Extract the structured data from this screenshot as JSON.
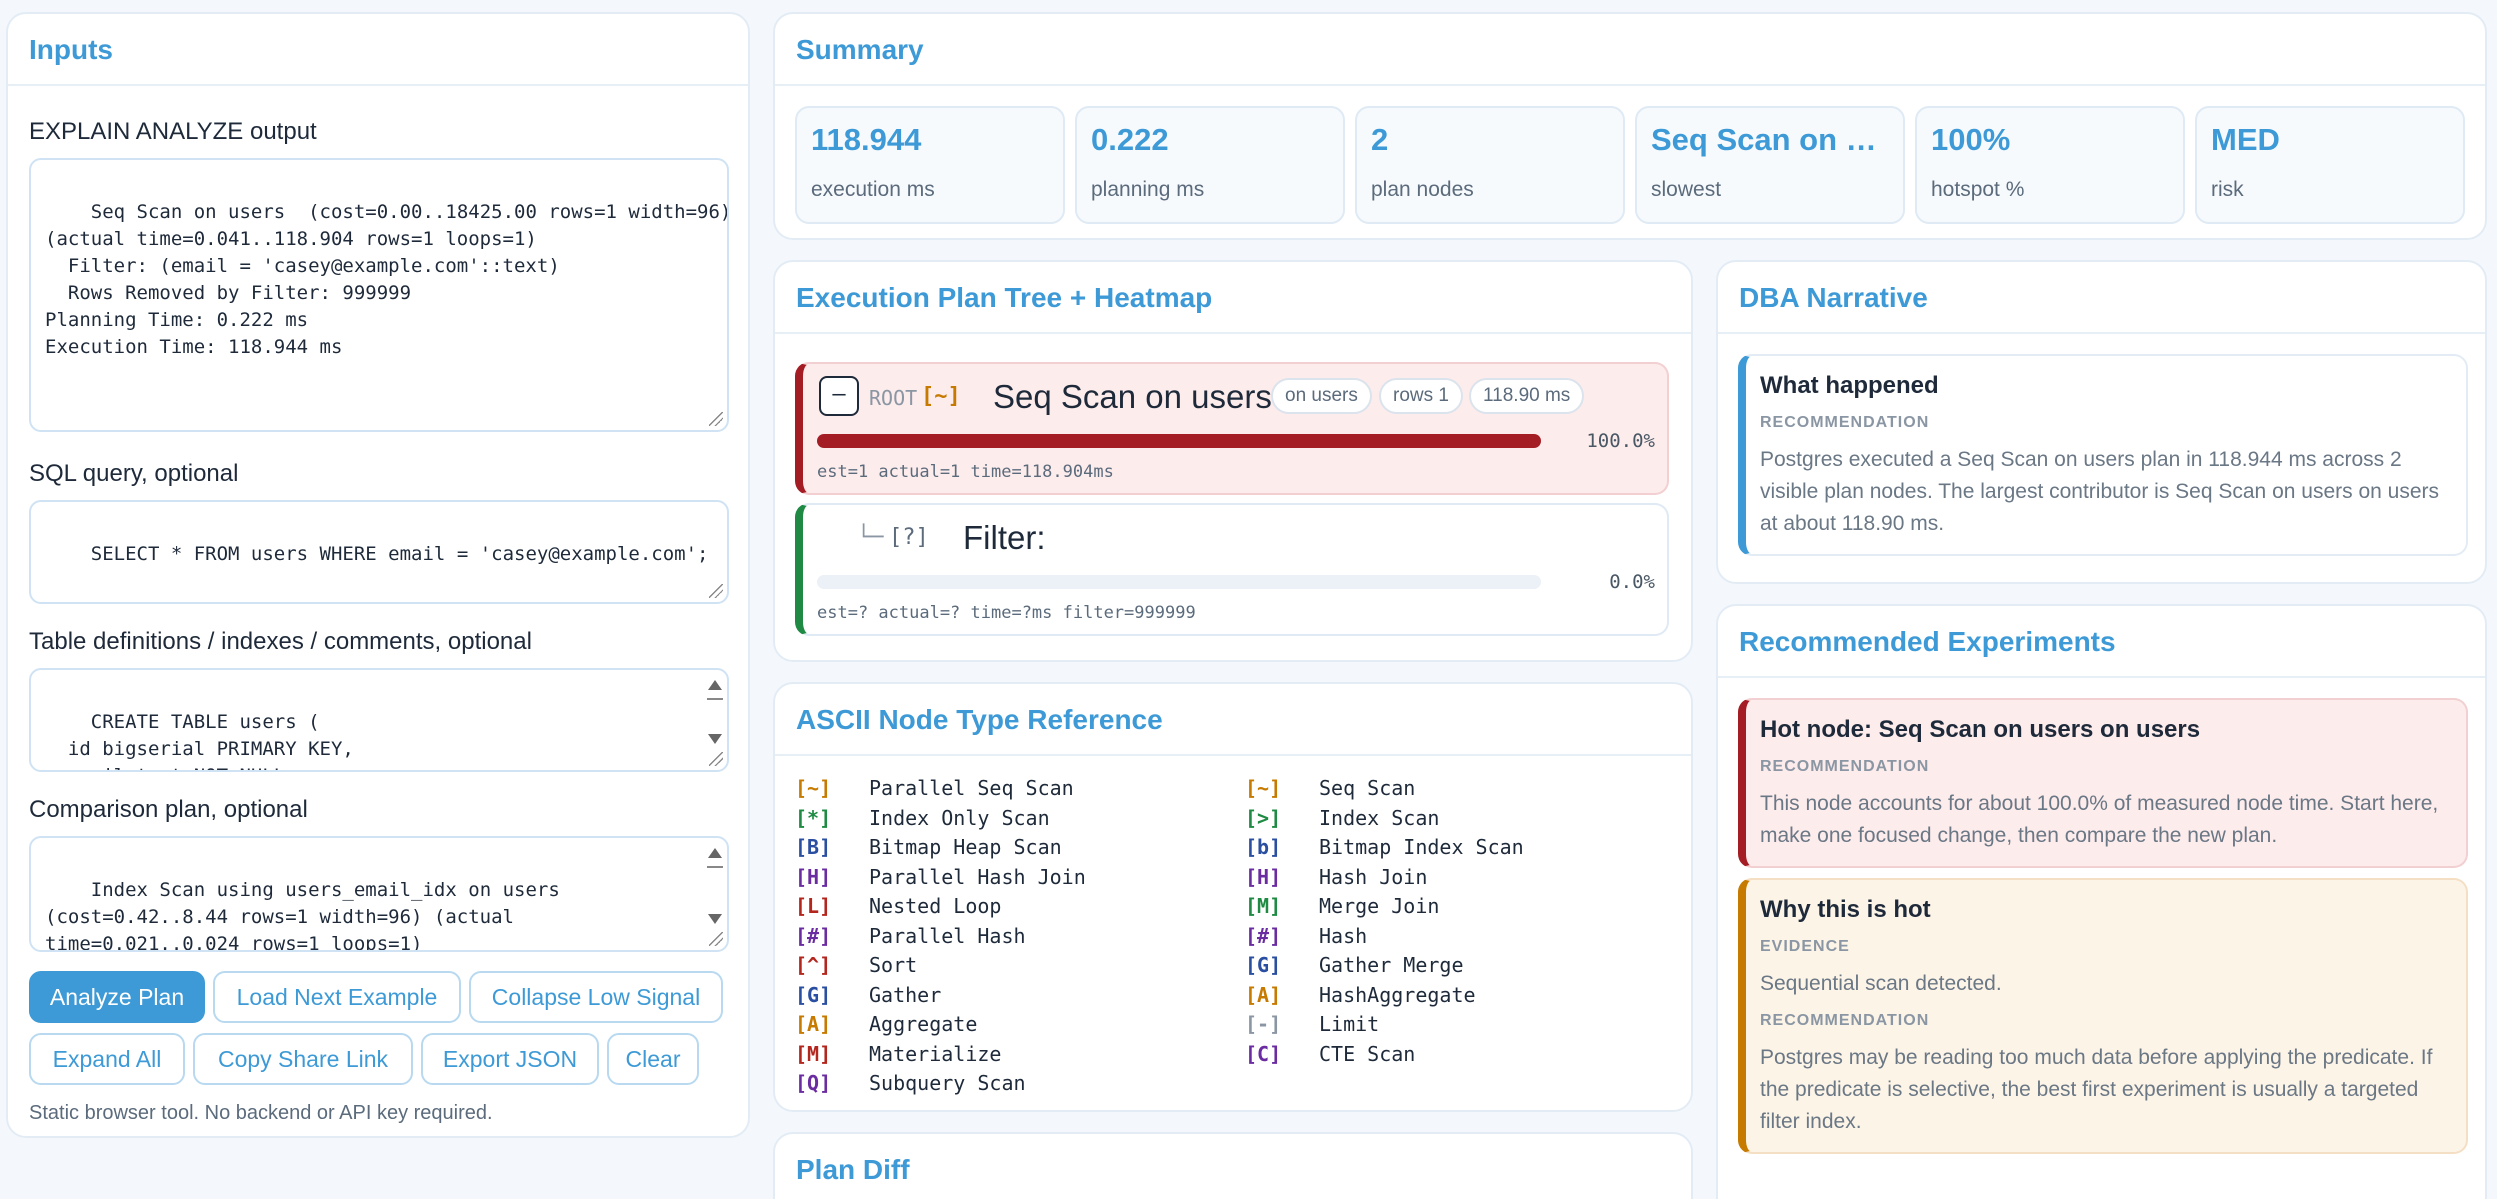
{
  "inputs": {
    "title": "Inputs",
    "explain_label": "EXPLAIN ANALYZE output",
    "explain_value": "Seq Scan on users  (cost=0.00..18425.00 rows=1 width=96)\n(actual time=0.041..118.904 rows=1 loops=1)\n  Filter: (email = 'casey@example.com'::text)\n  Rows Removed by Filter: 999999\nPlanning Time: 0.222 ms\nExecution Time: 118.944 ms",
    "sql_label": "SQL query, optional",
    "sql_value": "SELECT * FROM users WHERE email = 'casey@example.com';",
    "tables_label": "Table definitions / indexes / comments, optional",
    "tables_value": "CREATE TABLE users (\n  id bigserial PRIMARY KEY,\n  email text NOT NULL,",
    "comparison_label": "Comparison plan, optional",
    "comparison_value": "Index Scan using users_email_idx on users\n(cost=0.42..8.44 rows=1 width=96) (actual\ntime=0.021..0.024 rows=1 loops=1)",
    "buttons": {
      "analyze": "Analyze Plan",
      "load_next": "Load Next Example",
      "collapse": "Collapse Low Signal",
      "expand": "Expand All",
      "copy_link": "Copy Share Link",
      "export": "Export JSON",
      "clear": "Clear"
    },
    "footer": "Static browser tool. No backend or API key required."
  },
  "summary": {
    "title": "Summary",
    "stats": [
      {
        "value": "118.944",
        "label": "execution ms"
      },
      {
        "value": "0.222",
        "label": "planning ms"
      },
      {
        "value": "2",
        "label": "plan nodes"
      },
      {
        "value": "Seq Scan on users",
        "label": "slowest"
      },
      {
        "value": "100%",
        "label": "hotspot %"
      },
      {
        "value": "MED",
        "label": "risk"
      }
    ]
  },
  "plan": {
    "title": "Execution Plan Tree + Heatmap",
    "root": {
      "toggle": "–",
      "root_label": "ROOT",
      "type_symbol": "[~]",
      "name": "Seq Scan on users",
      "chips": [
        "on users",
        "rows 1",
        "118.90 ms"
      ],
      "share_pct": 100.0,
      "pct_label": "100.0%",
      "meta": "est=1 actual=1 time=118.904ms"
    },
    "child": {
      "branch": "└─",
      "type_symbol": "[?]",
      "name": "Filter:",
      "share_pct": 0.0,
      "pct_label": "0.0%",
      "meta": "est=? actual=? time=?ms filter=999999"
    }
  },
  "ascii": {
    "title": "ASCII Node Type Reference",
    "left": [
      {
        "sym": "[~]",
        "name": "Parallel Seq Scan",
        "color": "#c77a00"
      },
      {
        "sym": "[*]",
        "name": "Index Only Scan",
        "color": "#1f8a43"
      },
      {
        "sym": "[B]",
        "name": "Bitmap Heap Scan",
        "color": "#2b4fa0"
      },
      {
        "sym": "[H]",
        "name": "Parallel Hash Join",
        "color": "#6a2ca0"
      },
      {
        "sym": "[L]",
        "name": "Nested Loop",
        "color": "#b3261e"
      },
      {
        "sym": "[#]",
        "name": "Parallel Hash",
        "color": "#6a2ca0"
      },
      {
        "sym": "[^]",
        "name": "Sort",
        "color": "#b3261e"
      },
      {
        "sym": "[G]",
        "name": "Gather",
        "color": "#2b4fa0"
      },
      {
        "sym": "[A]",
        "name": "Aggregate",
        "color": "#c77a00"
      },
      {
        "sym": "[M]",
        "name": "Materialize",
        "color": "#b3261e"
      },
      {
        "sym": "[Q]",
        "name": "Subquery Scan",
        "color": "#6a2ca0"
      }
    ],
    "right": [
      {
        "sym": "[~]",
        "name": "Seq Scan",
        "color": "#c77a00"
      },
      {
        "sym": "[>]",
        "name": "Index Scan",
        "color": "#1f8a43"
      },
      {
        "sym": "[b]",
        "name": "Bitmap Index Scan",
        "color": "#2b4fa0"
      },
      {
        "sym": "[H]",
        "name": "Hash Join",
        "color": "#6a2ca0"
      },
      {
        "sym": "[M]",
        "name": "Merge Join",
        "color": "#1f8a43"
      },
      {
        "sym": "[#]",
        "name": "Hash",
        "color": "#6a2ca0"
      },
      {
        "sym": "[G]",
        "name": "Gather Merge",
        "color": "#2b4fa0"
      },
      {
        "sym": "[A]",
        "name": "HashAggregate",
        "color": "#c77a00"
      },
      {
        "sym": "[-]",
        "name": "Limit",
        "color": "#8a96a3"
      },
      {
        "sym": "[C]",
        "name": "CTE Scan",
        "color": "#6a2ca0"
      }
    ]
  },
  "diff": {
    "title": "Plan Diff"
  },
  "narrative": {
    "title": "DBA Narrative",
    "card_title": "What happened",
    "card_tag": "RECOMMENDATION",
    "card_text": "Postgres executed a Seq Scan on users plan in 118.944 ms across 2 visible plan nodes. The largest contributor is Seq Scan on users on users at about 118.90 ms."
  },
  "experiments": {
    "title": "Recommended Experiments",
    "hot": {
      "title": "Hot node: Seq Scan on users on users",
      "tag": "RECOMMENDATION",
      "text": "This node accounts for about 100.0% of measured node time. Start here, make one focused change, then compare the new plan."
    },
    "why": {
      "title": "Why this is hot",
      "tag1": "EVIDENCE",
      "text1": "Sequential scan detected.",
      "tag2": "RECOMMENDATION",
      "text2": "Postgres may be reading too much data before applying the predicate. If the predicate is selective, the best first experiment is usually a targeted filter index."
    }
  },
  "colors": {
    "accent": "#3d9ad6",
    "hot": "#a51d24",
    "ok": "#1f8a43",
    "warn": "#c77a00"
  }
}
